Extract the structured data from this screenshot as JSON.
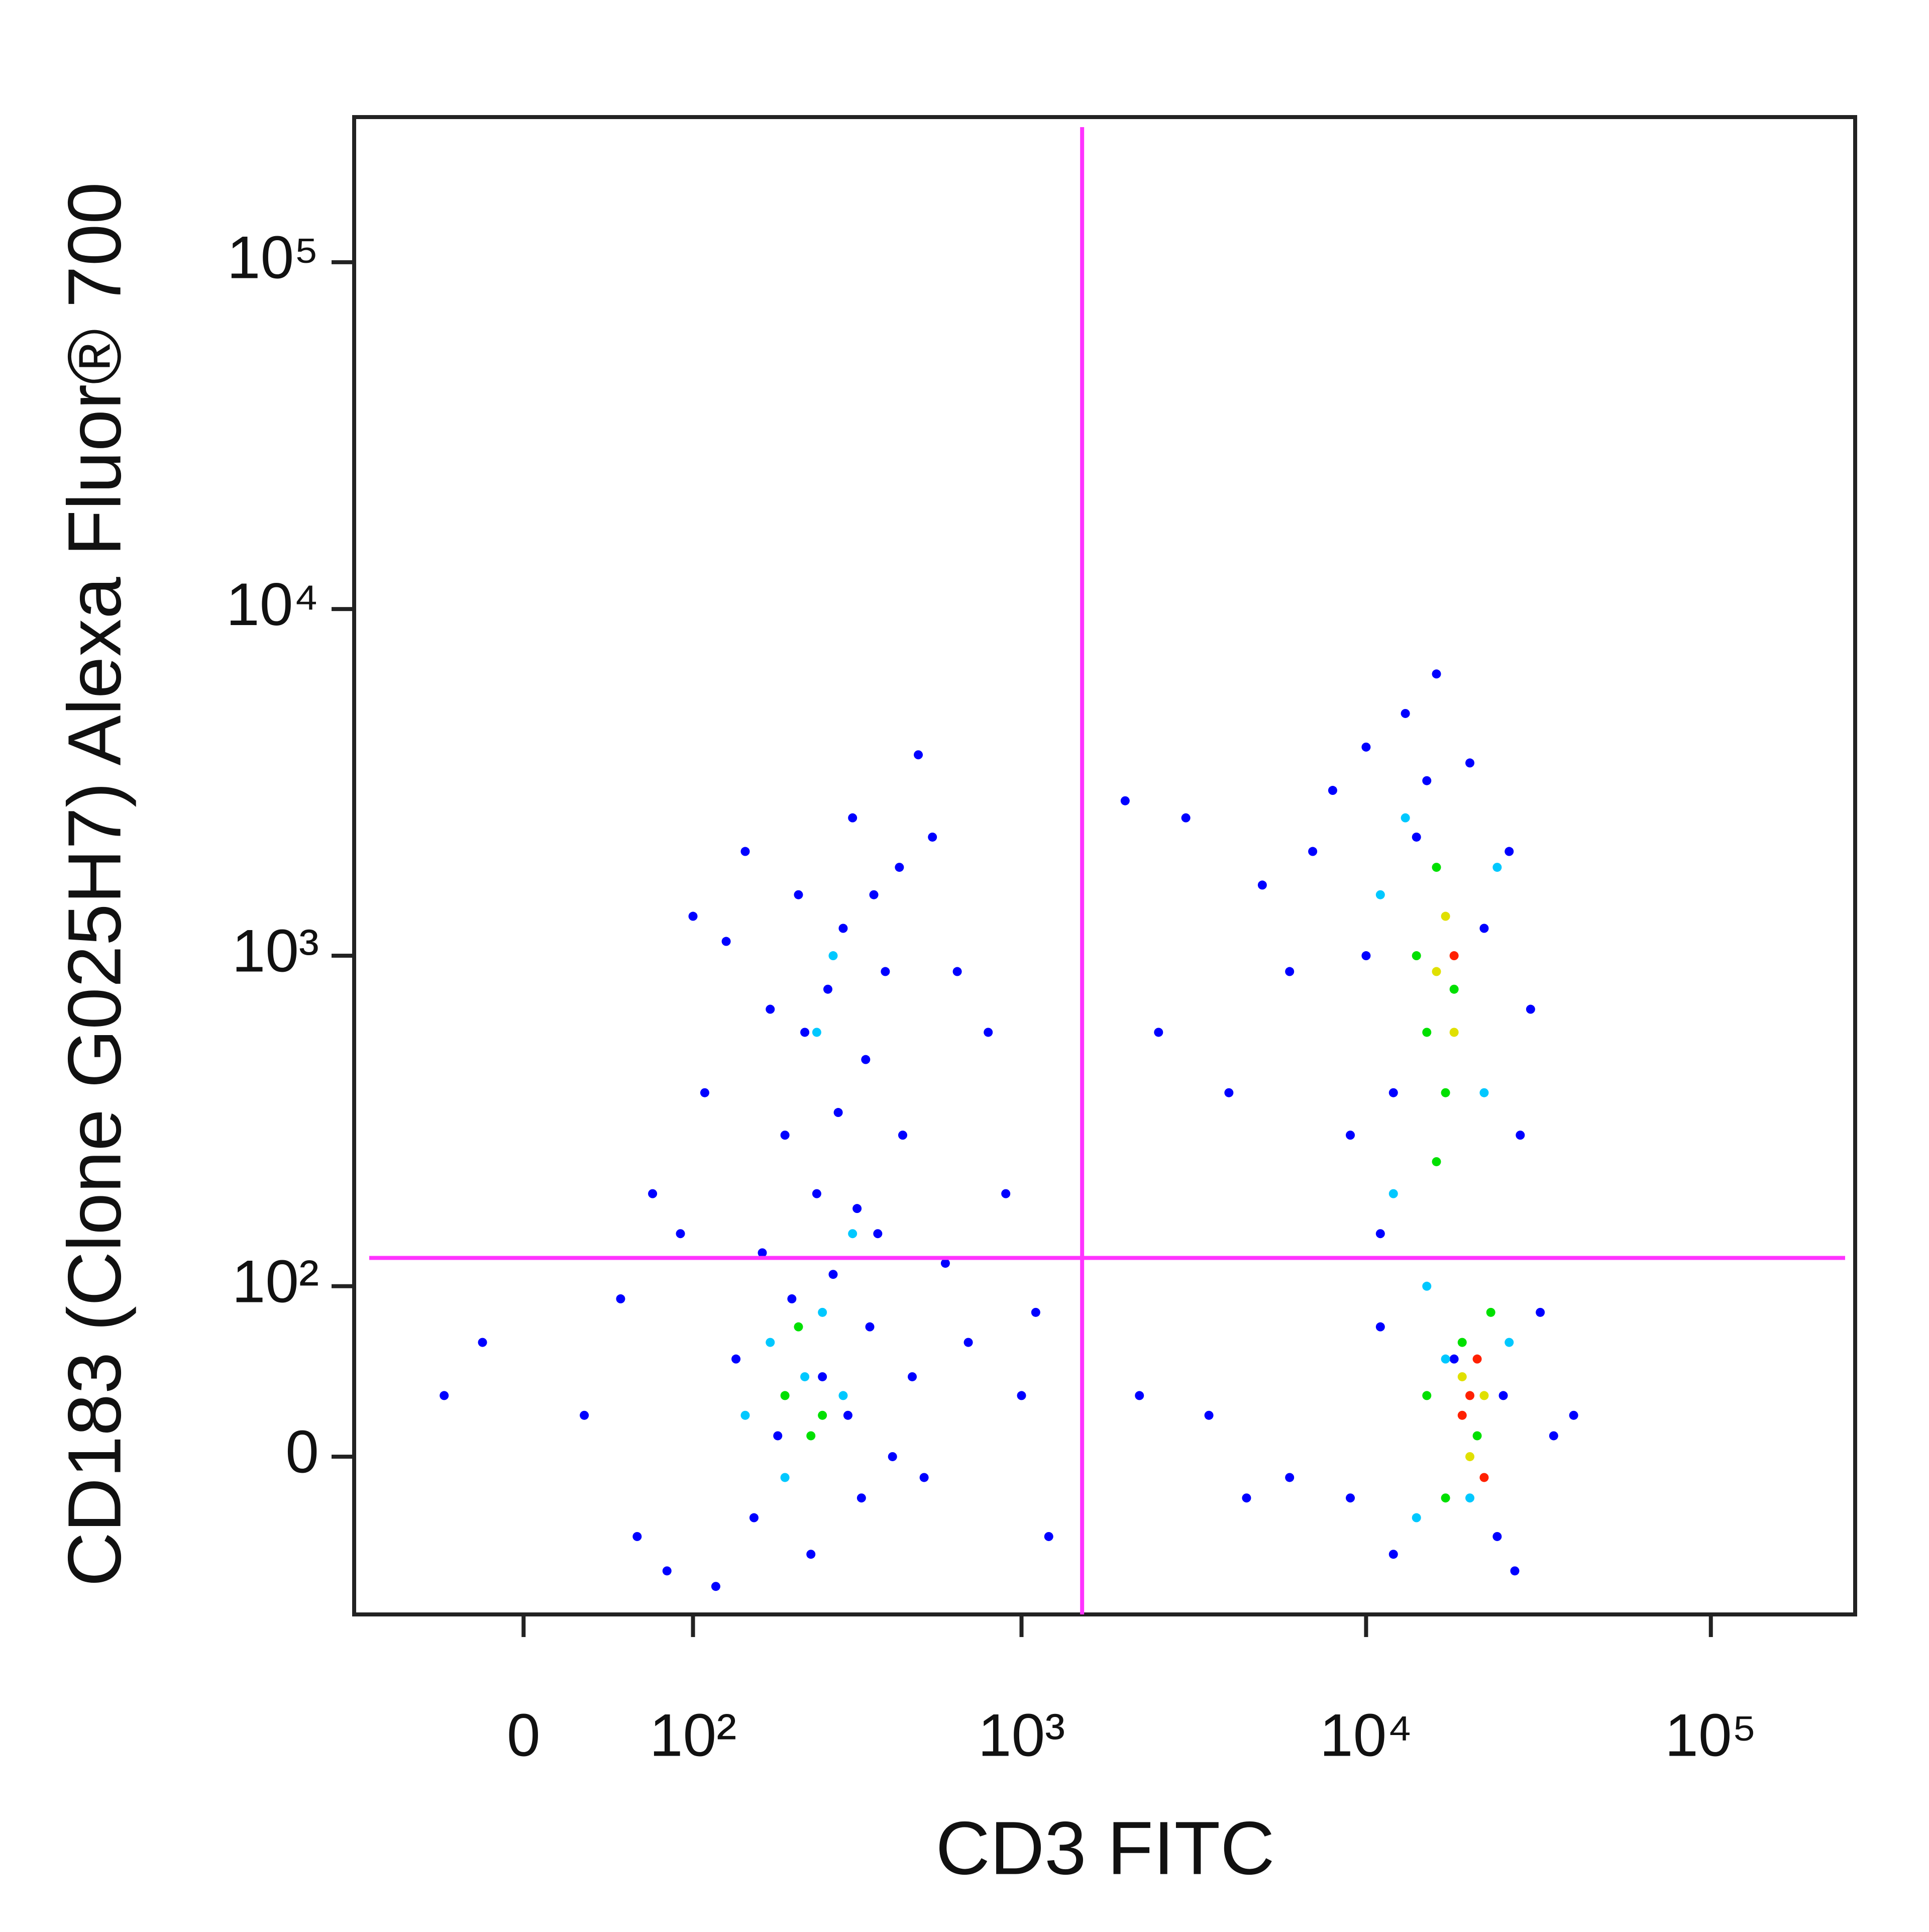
{
  "chart_data": {
    "type": "scatter",
    "x_label": "CD3 FITC",
    "y_label": "CD183 (Clone G025H7) Alexa Fluor® 700",
    "scale": "biexponential",
    "xlim": [
      -100,
      262144
    ],
    "ylim": [
      -90,
      262144
    ],
    "xticks": [
      0,
      {
        "value": 100,
        "label": "10²"
      },
      {
        "value": 1000,
        "label": "10³"
      },
      {
        "value": 10000,
        "label": "10⁴"
      },
      {
        "value": 100000,
        "label": "10⁵"
      }
    ],
    "yticks": [
      0,
      {
        "value": 100,
        "label": "10²"
      },
      {
        "value": 1000,
        "label": "10³"
      },
      {
        "value": 10000,
        "label": "10⁴"
      },
      {
        "value": 100000,
        "label": "10⁵"
      }
    ],
    "quadrant_x": 1500,
    "quadrant_y": 125,
    "quadrant_color": "#ff33ff",
    "series": [
      {
        "color": "#0000ff",
        "x": [
          60,
          30,
          -40,
          -20,
          50,
          80,
          90,
          110,
          130,
          150,
          180,
          200,
          220,
          250,
          270,
          300,
          320,
          350,
          380,
          400,
          450,
          500,
          550,
          600,
          700,
          900,
          140,
          160,
          190,
          210,
          240,
          260,
          280,
          310,
          340,
          360,
          420,
          480,
          520,
          120,
          170,
          230,
          290,
          330,
          370,
          440,
          100,
          70,
          650,
          800,
          1000,
          1200,
          1100,
          2000,
          2500,
          3000,
          4000,
          5000,
          6000,
          7000,
          8000,
          9000,
          10000,
          11000,
          12000,
          13000,
          14000,
          15000,
          16000,
          18000,
          20000,
          22000,
          24000,
          26000,
          28000,
          30000,
          32000,
          35000,
          40000,
          9000,
          10000,
          11000,
          12000,
          25000,
          27000,
          3500,
          4500,
          2200,
          6000
        ],
        "values": [
          -40,
          20,
          30,
          60,
          90,
          -60,
          150,
          400,
          1100,
          2000,
          700,
          300,
          1500,
          200,
          800,
          1200,
          2500,
          500,
          150,
          900,
          300,
          3800,
          2200,
          120,
          60,
          200,
          50,
          -30,
          10,
          90,
          -50,
          40,
          110,
          20,
          -20,
          70,
          0,
          40,
          -10,
          -70,
          130,
          600,
          350,
          180,
          1500,
          1800,
          1300,
          200,
          900,
          600,
          30,
          -40,
          80,
          2800,
          600,
          2500,
          400,
          1600,
          900,
          2000,
          3000,
          -20,
          4000,
          150,
          -50,
          5000,
          2200,
          3200,
          6500,
          50,
          3600,
          1200,
          -40,
          2000,
          300,
          700,
          80,
          10,
          20,
          300,
          1000,
          70,
          400,
          30,
          -60,
          20,
          -20,
          30,
          -10
        ]
      },
      {
        "color": "#00c8ff",
        "x": [
          150,
          180,
          200,
          230,
          260,
          300,
          280,
          320,
          250,
          11000,
          12000,
          13000,
          14000,
          15000,
          17000,
          20000,
          22000,
          24000,
          26000
        ],
        "values": [
          20,
          60,
          -10,
          40,
          80,
          30,
          1000,
          150,
          600,
          1500,
          200,
          2500,
          -30,
          100,
          50,
          -20,
          400,
          1800,
          60
        ]
      },
      {
        "color": "#00e000",
        "x": [
          200,
          240,
          220,
          260,
          14000,
          15000,
          16000,
          17000,
          18000,
          15000,
          17000,
          19000,
          21000,
          23000,
          16000
        ],
        "values": [
          30,
          10,
          70,
          20,
          1000,
          600,
          1800,
          400,
          800,
          30,
          -20,
          60,
          10,
          80,
          250
        ]
      },
      {
        "color": "#e0e000",
        "x": [
          16000,
          17000,
          18000,
          19000,
          20000,
          22000
        ],
        "values": [
          900,
          1300,
          600,
          40,
          0,
          30
        ]
      },
      {
        "color": "#ff2000",
        "x": [
          18000,
          19000,
          21000,
          22000,
          20000
        ],
        "values": [
          1000,
          20,
          50,
          -10,
          30
        ]
      }
    ]
  }
}
